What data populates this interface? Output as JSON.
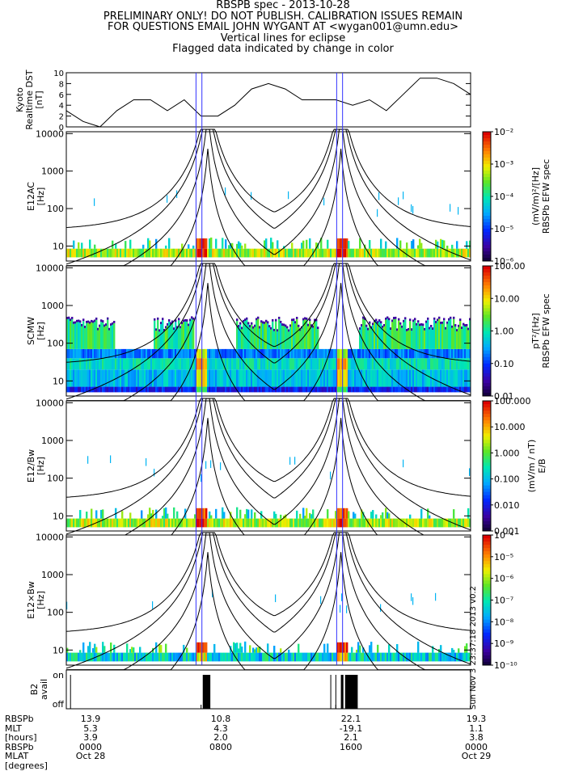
{
  "header": {
    "lines": [
      "RBSPB spec - 2013-10-28",
      "PRELIMINARY ONLY! DO NOT PUBLISH. CALIBRATION ISSUES REMAIN",
      "FOR QUESTIONS EMAIL JOHN WYGANT AT <wygan001@umn.edu>",
      "Vertical lines for eclipse",
      "Flagged data indicated by change in color"
    ]
  },
  "side_stamp": "Sun Nov 3 23:37:18 2013 v0.2",
  "colors": {
    "axes": "#000000",
    "eclipse_line": "#3333ff",
    "curves": "#000000"
  },
  "chart_data": [
    {
      "id": "dst",
      "type": "line",
      "ylabel": [
        "Kyoto",
        "Realtime DST",
        "[nT]"
      ],
      "ylim": [
        0,
        10
      ],
      "yticks": [
        "0",
        "2",
        "4",
        "6",
        "8",
        "10"
      ],
      "x": [
        0,
        1,
        2,
        3,
        4,
        5,
        6,
        7,
        8,
        9,
        10,
        11,
        12,
        13,
        14,
        15,
        16,
        17,
        18,
        19,
        20,
        21,
        22,
        23,
        24
      ],
      "values": [
        3,
        1,
        0,
        3,
        5,
        5,
        3,
        5,
        2,
        2,
        4,
        7,
        8,
        7,
        5,
        5,
        5,
        4,
        5,
        3,
        6,
        9,
        9,
        8,
        6
      ]
    },
    {
      "id": "e12ac",
      "type": "heatmap",
      "ylabel": [
        "E12AC",
        "[Hz]"
      ],
      "yticks": [
        "10",
        "100",
        "1000",
        "10000"
      ],
      "colorbar_ticks": [
        "10⁻²",
        "10⁻³",
        "10⁻⁴",
        "10⁻⁵",
        "10⁻⁶"
      ],
      "colorbar_label": [
        "(mV/m)²/[Hz]",
        "RBSPb EFW spec"
      ]
    },
    {
      "id": "scmw",
      "type": "heatmap",
      "ylabel": [
        "SCMW",
        "[Hz]"
      ],
      "yticks": [
        "10",
        "100",
        "1000",
        "10000"
      ],
      "colorbar_ticks": [
        "100.00",
        "10.00",
        "1.00",
        "0.10",
        "0.01"
      ],
      "colorbar_label": [
        "pT²/[Hz]",
        "RBSPb EFW spec"
      ]
    },
    {
      "id": "e12_bw",
      "type": "heatmap",
      "ylabel": [
        "E12/Bw",
        "[Hz]"
      ],
      "yticks": [
        "10",
        "100",
        "1000",
        "10000"
      ],
      "colorbar_ticks": [
        "100.000",
        "10.000",
        "1.000",
        "0.100",
        "0.010",
        "0.001"
      ],
      "colorbar_label": [
        "(mV/m / nT)",
        "E/B"
      ]
    },
    {
      "id": "e12xbw",
      "type": "heatmap",
      "ylabel": [
        "E12×Bw",
        "[Hz]"
      ],
      "yticks": [
        "10",
        "100",
        "1000",
        "10000"
      ],
      "colorbar_ticks": [
        "10⁻⁴",
        "10⁻⁵",
        "10⁻⁶",
        "10⁻⁷",
        "10⁻⁸",
        "10⁻⁹",
        "10⁻¹⁰"
      ]
    },
    {
      "id": "b2",
      "type": "bar",
      "ylabel": [
        "B2",
        "avail"
      ],
      "yticks": [
        "off",
        "on"
      ],
      "on_intervals_hours": [
        [
          8.1,
          8.55
        ],
        [
          16.3,
          16.45
        ],
        [
          16.55,
          17.3
        ]
      ]
    }
  ],
  "x_axis": {
    "labels": [
      "RBSPb",
      "MLT",
      "[hours]",
      "RBSPb",
      "MLAT",
      "[degrees]"
    ],
    "ticks": [
      {
        "hour": 0,
        "values": [
          "13.9",
          "5.3",
          "3.9",
          "0000",
          "Oct 28"
        ]
      },
      {
        "hour": 8,
        "values": [
          "10.8",
          "4.3",
          "2.0",
          "0800",
          ""
        ]
      },
      {
        "hour": 16,
        "values": [
          "22.1",
          "-19.1",
          "2.1",
          "1600",
          ""
        ]
      },
      {
        "hour": 24,
        "values": [
          "19.3",
          "1.1",
          "3.8",
          "0000",
          "Oct 29"
        ]
      }
    ]
  },
  "eclipse_hours": [
    [
      7.7,
      8.05
    ],
    [
      16.05,
      16.4
    ]
  ]
}
